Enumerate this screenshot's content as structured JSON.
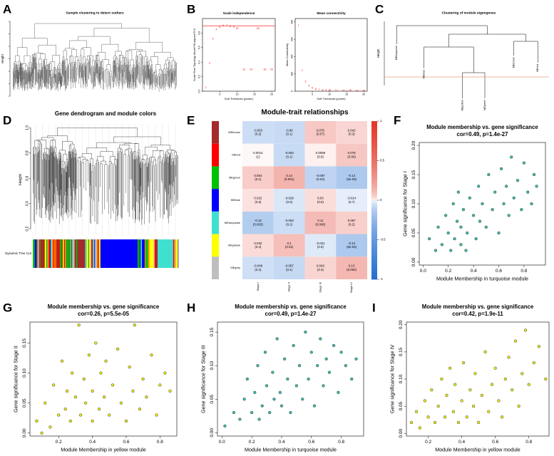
{
  "chart_data": [
    {
      "label": "A",
      "type": "dendrogram",
      "title": "Sample clustering to detect outliers",
      "ylabel": "Height"
    },
    {
      "label": "B",
      "type": "scatter",
      "marks": "labels",
      "title": "Scale independence",
      "xlabel": "Soft Threshold (power)",
      "ylabel": "Scale Free Topology Model Fit,signed R^2",
      "color": "#ff0000",
      "x": [
        1,
        2,
        3,
        4,
        5,
        6,
        7,
        8,
        9,
        10,
        12,
        14,
        16,
        18,
        20
      ],
      "values": [
        0.05,
        0.38,
        0.72,
        0.85,
        0.88,
        0.9,
        0.9,
        0.89,
        0.88,
        0.86,
        0.3,
        0.3,
        0.86,
        0.3,
        0.3
      ],
      "xlim": [
        0,
        21
      ],
      "ylim": [
        0,
        1
      ],
      "xticks": [
        5,
        10,
        15,
        20
      ],
      "yticks": [
        {
          "value": 0,
          "label": "0.0"
        },
        0.2,
        0.4,
        0.6,
        0.8
      ],
      "hline": 0.9,
      "hline_color": "#ff0000"
    },
    {
      "type": "scatter",
      "marks": "labels",
      "title": "Mean connectivity",
      "xlabel": "Soft Threshold (power)",
      "ylabel": "Mean Connectivity",
      "color": "#ff0000",
      "x": [
        1,
        2,
        3,
        4,
        5,
        6,
        7,
        8,
        9,
        10,
        12,
        14,
        16,
        18,
        20
      ],
      "values": [
        380,
        120,
        55,
        30,
        18,
        12,
        9,
        7,
        6,
        5,
        4,
        3,
        3,
        2,
        2
      ],
      "xlim": [
        0,
        21
      ],
      "ylim": [
        0,
        420
      ],
      "xticks": [
        5,
        10,
        15,
        20
      ],
      "yticks": [
        0,
        100,
        200,
        300,
        400
      ]
    },
    {
      "label": "C",
      "type": "dendrogram",
      "title": "Clustering of module eigengenes",
      "ylabel": "Height",
      "leaves": [
        "MEturquoise",
        "MEblue",
        "MEyellow",
        "MEgreen",
        "MEbrown",
        "MEred"
      ],
      "cut_color": "#e07030"
    },
    {
      "label": "D",
      "type": "dendrogram",
      "title": "Gene dendrogram and module colors",
      "ylabel": "Height",
      "ylim": [
        0.15,
        1.03
      ],
      "yticks": [
        0.2,
        0.4,
        0.6,
        0.8,
        {
          "value": 1,
          "label": "1.0"
        }
      ],
      "bar_label": "Dynamic Tree Cut"
    },
    {
      "label": "E",
      "type": "heatmap",
      "title": "Module-trait relationships",
      "rows": [
        "MEbrown",
        "MEred",
        "MEgreen",
        "MEblue",
        "MEturquoise",
        "MEyellow",
        "MEgrey"
      ],
      "row_colors": [
        "#a52a2a",
        "#ff0000",
        "#00c000",
        "#0000ff",
        "#40e0d0",
        "#ffff00",
        "#bebebe"
      ],
      "columns": [
        "Stage I",
        "Stage II",
        "Stage III",
        "Stage IV"
      ],
      "values": [
        [
          -0.053,
          -0.06,
          0.075,
          0.042
        ],
        [
          0.0014,
          -0.063,
          0.0058,
          0.076
        ],
        [
          0.064,
          0.14,
          -0.087,
          -0.14
        ],
        [
          0.022,
          -0.028,
          0.03,
          -0.014
        ],
        [
          -0.12,
          -0.053,
          0.11,
          0.057
        ],
        [
          0.032,
          0.1,
          -0.021,
          -0.14
        ],
        [
          -0.048,
          -0.067,
          0.043,
          0.13
        ]
      ],
      "p_values": [
        [
          0.2,
          0.1,
          0.07,
          0.3
        ],
        [
          1,
          0.1,
          0.9,
          0.06
        ],
        [
          0.1,
          0.001,
          0.03,
          0.0006
        ],
        [
          0.6,
          0.5,
          0.5,
          0.7
        ],
        [
          0.003,
          0.2,
          0.006,
          0.2
        ],
        [
          0.4,
          0.01,
          0.6,
          0.0006
        ],
        [
          0.2,
          0.1,
          0.3,
          0.002
        ]
      ],
      "p_labels": [
        [
          "(0.2)",
          "(0.1)",
          "(0.07)",
          "(0.3)"
        ],
        [
          "(1)",
          "(0.1)",
          "(0.9)",
          "(0.06)"
        ],
        [
          "(0.1)",
          "(0.001)",
          "(0.03)",
          "(6e-04)"
        ],
        [
          "(0.6)",
          "(0.5)",
          "(0.5)",
          "(0.7)"
        ],
        [
          "(0.003)",
          "(0.2)",
          "(0.006)",
          "(0.2)"
        ],
        [
          "(0.4)",
          "(0.01)",
          "(0.6)",
          "(6e-04)"
        ],
        [
          "(0.2)",
          "(0.1)",
          "(0.3)",
          "(0.002)"
        ]
      ],
      "clim": [
        -1,
        1
      ],
      "cticks": [
        -1,
        -0.5,
        0,
        0.5,
        1
      ]
    },
    {
      "label": "F",
      "type": "scatter",
      "title": "Module membership vs. gene significance",
      "subtitle": "cor=0.49, p=1.4e-27",
      "xlabel": "Module Membership in turquoise module",
      "ylabel": "Gene significance for Stage I",
      "color": "#3cbcae",
      "x": [
        0.05,
        0.1,
        0.12,
        0.15,
        0.18,
        0.2,
        0.22,
        0.24,
        0.25,
        0.27,
        0.28,
        0.3,
        0.3,
        0.32,
        0.34,
        0.35,
        0.37,
        0.4,
        0.42,
        0.44,
        0.45,
        0.47,
        0.5,
        0.52,
        0.55,
        0.57,
        0.6,
        0.62,
        0.64,
        0.66,
        0.68,
        0.7,
        0.72,
        0.75,
        0.78,
        0.8,
        0.83,
        0.86,
        0.88,
        0.9
      ],
      "values": [
        0.04,
        0.02,
        0.06,
        0.03,
        0.08,
        0.05,
        0.02,
        0.1,
        0.04,
        0.07,
        0.12,
        0.03,
        0.06,
        0.09,
        0.02,
        0.05,
        0.11,
        0.08,
        0.04,
        0.13,
        0.07,
        0.1,
        0.06,
        0.15,
        0.09,
        0.12,
        0.05,
        0.16,
        0.1,
        0.13,
        0.08,
        0.18,
        0.11,
        0.14,
        0.09,
        0.17,
        0.12,
        0.1,
        0.15,
        0.13
      ],
      "xlim": [
        -0.03,
        0.97
      ],
      "ylim": [
        -0.005,
        0.205
      ],
      "xticks": [
        {
          "value": 0,
          "label": "0.0"
        },
        0.2,
        0.4,
        0.6,
        0.8
      ],
      "yticks": [
        {
          "value": 0,
          "label": "0.00"
        },
        0.05,
        {
          "value": 0.1,
          "label": "0.10"
        },
        0.15,
        {
          "value": 0.2,
          "label": "0.20"
        }
      ]
    },
    {
      "label": "G",
      "type": "scatter",
      "title": "Module membership vs. gene significance",
      "subtitle": "cor=0.26, p=5.5e-05",
      "xlabel": "Module Membership in yellow module",
      "ylabel": "Gene significance for Stage II",
      "color": "#e8e810",
      "x": [
        0.07,
        0.1,
        0.12,
        0.15,
        0.17,
        0.2,
        0.22,
        0.24,
        0.25,
        0.27,
        0.28,
        0.3,
        0.32,
        0.33,
        0.35,
        0.36,
        0.38,
        0.4,
        0.4,
        0.42,
        0.44,
        0.45,
        0.47,
        0.48,
        0.5,
        0.52,
        0.55,
        0.57,
        0.6,
        0.62,
        0.64,
        0.65,
        0.68,
        0.7,
        0.72,
        0.75,
        0.78,
        0.8,
        0.83,
        0.86
      ],
      "values": [
        0.02,
        0.0,
        0.05,
        0.01,
        0.08,
        0.03,
        0.12,
        0.04,
        0.07,
        0.02,
        0.1,
        0.06,
        0.18,
        0.03,
        0.09,
        0.05,
        0.13,
        0.02,
        0.07,
        0.15,
        0.04,
        0.1,
        0.06,
        0.12,
        0.03,
        0.08,
        0.14,
        0.05,
        0.02,
        0.11,
        0.07,
        0.18,
        0.04,
        0.09,
        0.06,
        0.13,
        0.03,
        0.08,
        0.1,
        0.07
      ],
      "xlim": [
        0.03,
        0.9
      ],
      "ylim": [
        -0.005,
        0.185
      ],
      "xticks": [
        0.2,
        0.4,
        0.6,
        0.8
      ],
      "yticks": [
        {
          "value": 0,
          "label": "0.00"
        },
        0.05,
        {
          "value": 0.1,
          "label": "0.10"
        },
        0.15
      ]
    },
    {
      "label": "H",
      "type": "scatter",
      "title": "Module membership vs. gene significance",
      "subtitle": "cor=0.49, p=1.4e-27",
      "xlabel": "Module Membership in turquoise module",
      "ylabel": "Gene significance for Stage III",
      "color": "#3cbcae",
      "x": [
        0.02,
        0.08,
        0.12,
        0.15,
        0.17,
        0.2,
        0.22,
        0.24,
        0.25,
        0.27,
        0.29,
        0.3,
        0.32,
        0.34,
        0.35,
        0.37,
        0.39,
        0.4,
        0.42,
        0.44,
        0.46,
        0.48,
        0.5,
        0.52,
        0.54,
        0.56,
        0.58,
        0.6,
        0.62,
        0.64,
        0.66,
        0.68,
        0.7,
        0.72,
        0.75,
        0.78,
        0.8,
        0.83,
        0.87,
        0.9
      ],
      "values": [
        0.01,
        0.03,
        0.02,
        0.05,
        0.08,
        0.03,
        0.06,
        0.1,
        0.02,
        0.04,
        0.12,
        0.07,
        0.03,
        0.09,
        0.05,
        0.14,
        0.06,
        0.04,
        0.11,
        0.08,
        0.03,
        0.13,
        0.07,
        0.1,
        0.05,
        0.15,
        0.08,
        0.12,
        0.04,
        0.1,
        0.14,
        0.07,
        0.11,
        0.09,
        0.13,
        0.06,
        0.12,
        0.1,
        0.08,
        0.11
      ],
      "xlim": [
        -0.03,
        0.95
      ],
      "ylim": [
        -0.005,
        0.165
      ],
      "xticks": [
        {
          "value": 0,
          "label": "0.0"
        },
        0.2,
        0.4,
        0.6,
        0.8
      ],
      "yticks": [
        {
          "value": 0,
          "label": "0.00"
        },
        0.05,
        {
          "value": 0.1,
          "label": "0.10"
        },
        0.15
      ]
    },
    {
      "label": "I",
      "type": "scatter",
      "title": "Module membership vs. gene significance",
      "subtitle": "cor=0.42, p=1.9e-11",
      "xlabel": "Module Membership in yellow module",
      "ylabel": "Gene significance for Stage IV",
      "color": "#e8e810",
      "x": [
        0.1,
        0.13,
        0.15,
        0.18,
        0.2,
        0.22,
        0.24,
        0.26,
        0.28,
        0.3,
        0.31,
        0.33,
        0.35,
        0.36,
        0.38,
        0.4,
        0.41,
        0.43,
        0.45,
        0.47,
        0.48,
        0.5,
        0.52,
        0.54,
        0.56,
        0.58,
        0.6,
        0.62,
        0.64,
        0.66,
        0.68,
        0.7,
        0.72,
        0.74,
        0.76,
        0.78,
        0.8,
        0.83,
        0.86,
        0.9
      ],
      "values": [
        0.02,
        0.04,
        0.01,
        0.06,
        0.03,
        0.08,
        0.02,
        0.05,
        0.1,
        0.03,
        0.07,
        0.12,
        0.04,
        0.09,
        0.02,
        0.06,
        0.13,
        0.03,
        0.08,
        0.05,
        0.11,
        0.02,
        0.07,
        0.15,
        0.04,
        0.09,
        0.12,
        0.06,
        0.03,
        0.1,
        0.14,
        0.08,
        0.17,
        0.05,
        0.11,
        0.19,
        0.09,
        0.13,
        0.16,
        0.1
      ],
      "xlim": [
        0.07,
        0.92
      ],
      "ylim": [
        -0.005,
        0.205
      ],
      "xticks": [
        0.2,
        0.4,
        0.6,
        0.8
      ],
      "yticks": [
        {
          "value": 0,
          "label": "0.00"
        },
        0.05,
        {
          "value": 0.1,
          "label": "0.10"
        },
        0.15,
        {
          "value": 0.2,
          "label": "0.20"
        }
      ]
    }
  ]
}
